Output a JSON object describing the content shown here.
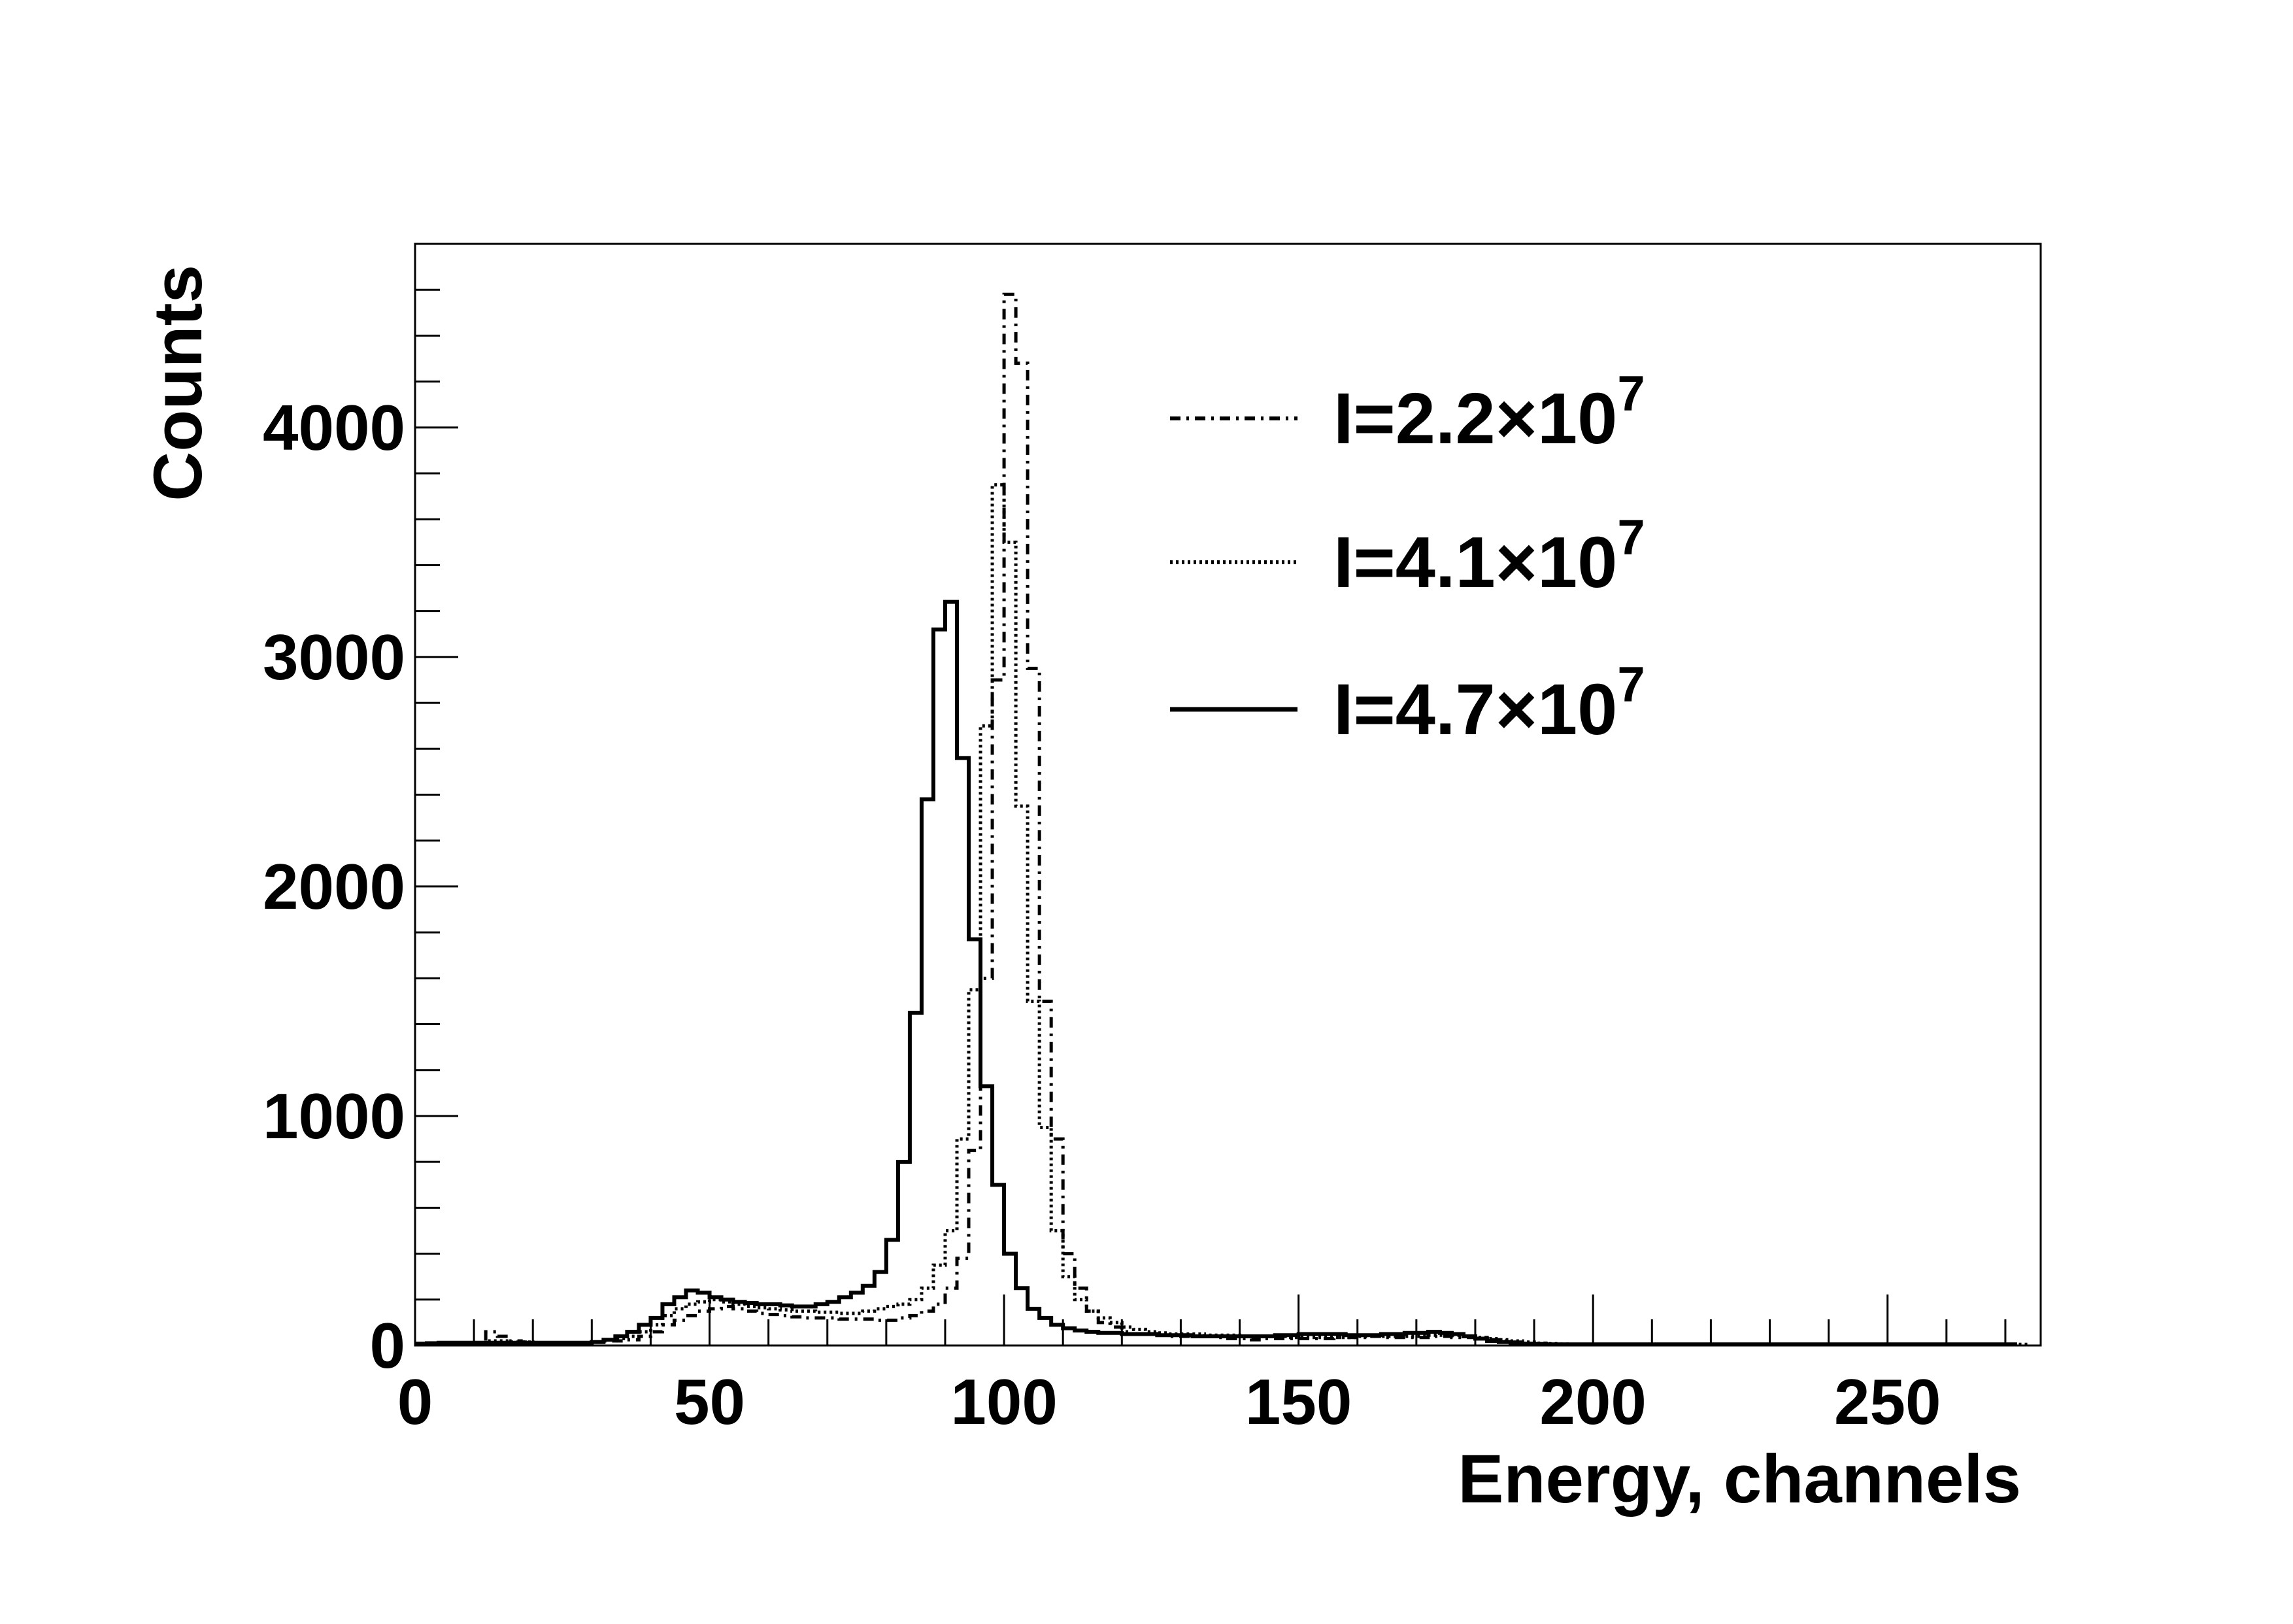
{
  "chart_data": {
    "type": "histogram",
    "xlabel": "Energy, channels",
    "ylabel": "Counts",
    "xlim": [
      0,
      276
    ],
    "ylim": [
      0,
      4800
    ],
    "grid": false,
    "legend_position": "top-right",
    "x_ticks": [
      {
        "value": 0,
        "label": "0"
      },
      {
        "value": 50,
        "label": "50"
      },
      {
        "value": 100,
        "label": "100"
      },
      {
        "value": 150,
        "label": "150"
      },
      {
        "value": 200,
        "label": "200"
      },
      {
        "value": 250,
        "label": "250"
      }
    ],
    "y_ticks": [
      {
        "value": 0,
        "label": "0"
      },
      {
        "value": 1000,
        "label": "1000"
      },
      {
        "value": 2000,
        "label": "2000"
      },
      {
        "value": 3000,
        "label": "3000"
      },
      {
        "value": 4000,
        "label": "4000"
      }
    ],
    "bin_width": 2,
    "bin_start": 0,
    "series": [
      {
        "name_base": "I=2.2",
        "name_times": "×10",
        "name_exp": "7",
        "line_style": "dashdot",
        "values": [
          5,
          8,
          10,
          10,
          10,
          10,
          60,
          40,
          20,
          15,
          10,
          10,
          10,
          10,
          10,
          15,
          20,
          20,
          25,
          40,
          60,
          90,
          110,
          130,
          150,
          160,
          170,
          160,
          150,
          140,
          135,
          130,
          125,
          120,
          120,
          120,
          115,
          115,
          115,
          110,
          110,
          120,
          130,
          150,
          180,
          250,
          380,
          850,
          1600,
          2900,
          4580,
          4280,
          2950,
          1500,
          900,
          400,
          250,
          150,
          100,
          80,
          60,
          50,
          50,
          45,
          40,
          40,
          40,
          40,
          35,
          30,
          30,
          25,
          30,
          30,
          30,
          30,
          30,
          30,
          35,
          35,
          35,
          40,
          35,
          35,
          35,
          35,
          40,
          40,
          35,
          35,
          30,
          25,
          20,
          15,
          10,
          8,
          6,
          5,
          5,
          5,
          5,
          5,
          5,
          5,
          5,
          5,
          5,
          5,
          5,
          5,
          5,
          5,
          5,
          5,
          5,
          5,
          5,
          5,
          5,
          5,
          5,
          5,
          5,
          5,
          5,
          5,
          5,
          5,
          5,
          5,
          5,
          5,
          5,
          5,
          5,
          5
        ]
      },
      {
        "name_base": "I=4.1",
        "name_times": "×10",
        "name_exp": "7",
        "line_style": "dotted",
        "values": [
          5,
          8,
          10,
          10,
          10,
          10,
          20,
          20,
          15,
          15,
          10,
          10,
          10,
          10,
          10,
          15,
          25,
          30,
          40,
          60,
          90,
          130,
          160,
          180,
          190,
          200,
          190,
          180,
          170,
          165,
          160,
          155,
          150,
          150,
          145,
          145,
          140,
          140,
          150,
          160,
          170,
          180,
          200,
          250,
          350,
          500,
          900,
          1550,
          2700,
          3750,
          3500,
          2350,
          1500,
          950,
          500,
          300,
          200,
          150,
          120,
          100,
          80,
          70,
          60,
          55,
          50,
          50,
          50,
          45,
          45,
          45,
          40,
          40,
          40,
          40,
          35,
          35,
          35,
          35,
          35,
          35,
          40,
          40,
          40,
          40,
          40,
          40,
          45,
          45,
          45,
          40,
          35,
          30,
          25,
          20,
          15,
          10,
          8,
          6,
          5,
          5,
          5,
          5,
          5,
          5,
          5,
          5,
          5,
          5,
          5,
          5,
          5,
          5,
          5,
          5,
          5,
          5,
          5,
          5,
          5,
          5,
          5,
          5,
          5,
          5,
          5,
          5,
          5,
          5,
          5,
          5,
          5,
          5,
          5,
          5,
          5,
          5,
          5
        ]
      },
      {
        "name_base": "I=4.7",
        "name_times": "×10",
        "name_exp": "7",
        "line_style": "solid",
        "values": [
          8,
          10,
          12,
          12,
          12,
          12,
          12,
          12,
          12,
          12,
          12,
          12,
          12,
          12,
          12,
          15,
          25,
          40,
          60,
          90,
          120,
          180,
          210,
          240,
          230,
          210,
          200,
          190,
          185,
          180,
          180,
          175,
          170,
          170,
          180,
          190,
          210,
          230,
          260,
          320,
          460,
          800,
          1450,
          2380,
          3120,
          3240,
          2560,
          1770,
          1130,
          700,
          400,
          250,
          160,
          120,
          90,
          75,
          65,
          60,
          55,
          55,
          50,
          50,
          50,
          45,
          45,
          45,
          40,
          40,
          40,
          40,
          40,
          40,
          40,
          45,
          45,
          50,
          50,
          50,
          50,
          45,
          45,
          45,
          50,
          50,
          55,
          55,
          60,
          55,
          50,
          40,
          30,
          20,
          15,
          10,
          8,
          6,
          5,
          5,
          5,
          5,
          5,
          5,
          5,
          5,
          5,
          5,
          5,
          5,
          5,
          5,
          5,
          5,
          5,
          5,
          5,
          5,
          5,
          5,
          5,
          5,
          5,
          5,
          5,
          5,
          5,
          5,
          5,
          5,
          5,
          5,
          5,
          5,
          5,
          5,
          5,
          5
        ]
      }
    ]
  }
}
